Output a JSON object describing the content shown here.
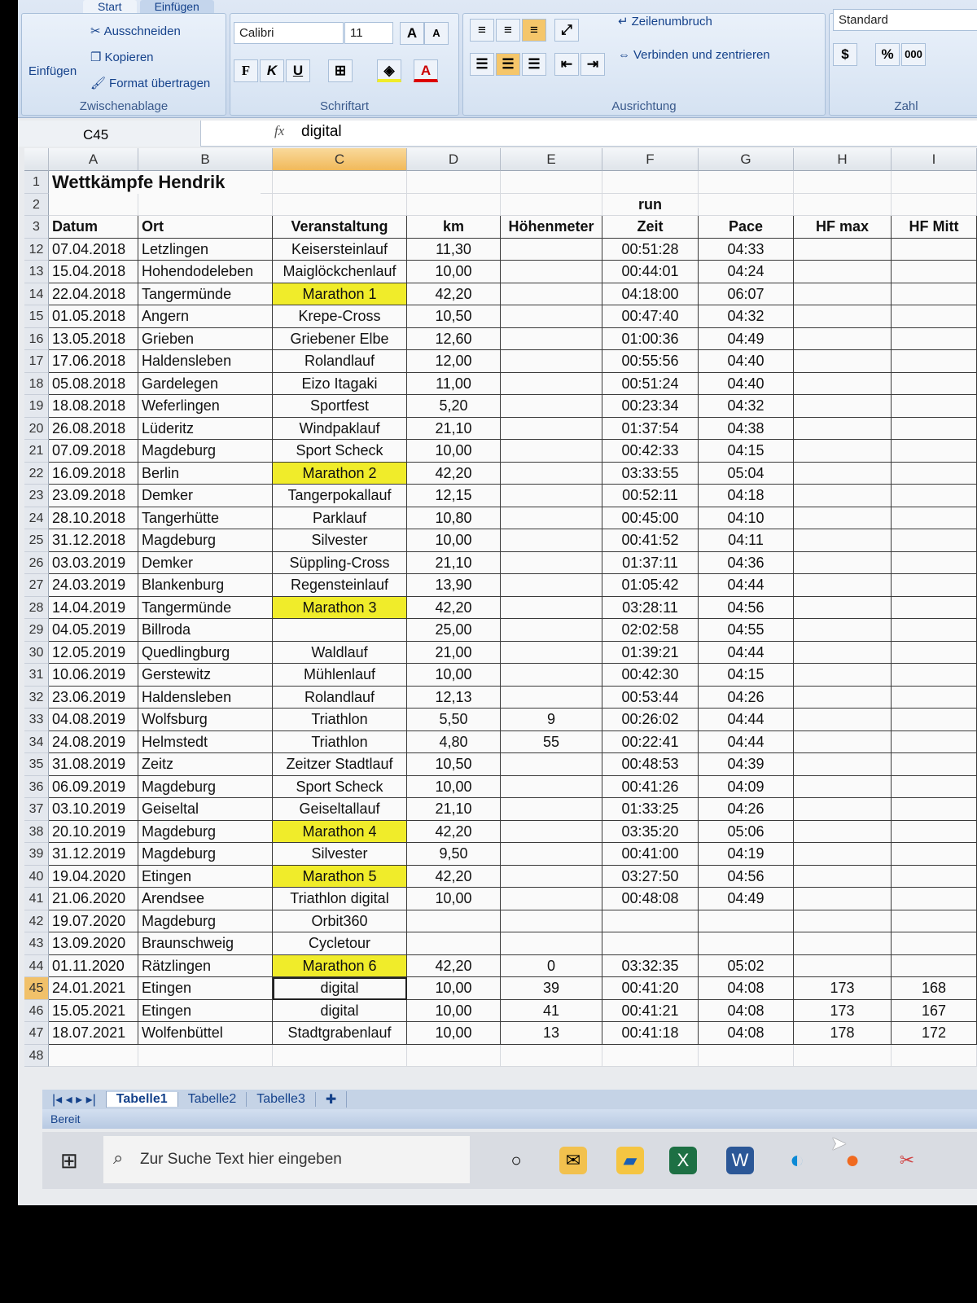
{
  "ribbon": {
    "tabs": [
      "Start",
      "Einfügen"
    ],
    "clipboard": {
      "paste": "Einfügen",
      "cut": "Ausschneiden",
      "copy": "Kopieren",
      "format_painter": "Format übertragen",
      "label": "Zwischenablage"
    },
    "font": {
      "name": "Calibri",
      "size": "11",
      "bold": "F",
      "italic": "K",
      "underline": "U",
      "label": "Schriftart"
    },
    "alignment": {
      "wrap": "Zeilenumbruch",
      "merge": "Verbinden und zentrieren",
      "label": "Ausrichtung"
    },
    "number": {
      "format": "Standard",
      "percent": "%",
      "thousands": "000",
      "label": "Zahl"
    }
  },
  "formula_bar": {
    "name_box": "C45",
    "fx": "fx",
    "value": "digital"
  },
  "columns": [
    "A",
    "B",
    "C",
    "D",
    "E",
    "F",
    "G",
    "H",
    "I"
  ],
  "selected_column": "C",
  "sheet": {
    "title": "Wettkämpfe Hendrik",
    "group_header": "run",
    "headers": [
      "Datum",
      "Ort",
      "Veranstaltung",
      "km",
      "Höhenmeter",
      "Zeit",
      "Pace",
      "HF max",
      "HF Mitt"
    ],
    "rows": [
      [
        "12",
        "07.04.2018",
        "Letzlingen",
        "Keisersteinlauf",
        "11,30",
        "",
        "00:51:28",
        "04:33",
        "",
        ""
      ],
      [
        "13",
        "15.04.2018",
        "Hohendodeleben",
        "Maiglöckchenlauf",
        "10,00",
        "",
        "00:44:01",
        "04:24",
        "",
        ""
      ],
      [
        "14",
        "22.04.2018",
        "Tangermünde",
        "Marathon 1",
        "42,20",
        "",
        "04:18:00",
        "06:07",
        "",
        ""
      ],
      [
        "15",
        "01.05.2018",
        "Angern",
        "Krepe-Cross",
        "10,50",
        "",
        "00:47:40",
        "04:32",
        "",
        ""
      ],
      [
        "16",
        "13.05.2018",
        "Grieben",
        "Griebener Elbe",
        "12,60",
        "",
        "01:00:36",
        "04:49",
        "",
        ""
      ],
      [
        "17",
        "17.06.2018",
        "Haldensleben",
        "Rolandlauf",
        "12,00",
        "",
        "00:55:56",
        "04:40",
        "",
        ""
      ],
      [
        "18",
        "05.08.2018",
        "Gardelegen",
        "Eizo Itagaki",
        "11,00",
        "",
        "00:51:24",
        "04:40",
        "",
        ""
      ],
      [
        "19",
        "18.08.2018",
        "Weferlingen",
        "Sportfest",
        "5,20",
        "",
        "00:23:34",
        "04:32",
        "",
        ""
      ],
      [
        "20",
        "26.08.2018",
        "Lüderitz",
        "Windpaklauf",
        "21,10",
        "",
        "01:37:54",
        "04:38",
        "",
        ""
      ],
      [
        "21",
        "07.09.2018",
        "Magdeburg",
        "Sport Scheck",
        "10,00",
        "",
        "00:42:33",
        "04:15",
        "",
        ""
      ],
      [
        "22",
        "16.09.2018",
        "Berlin",
        "Marathon 2",
        "42,20",
        "",
        "03:33:55",
        "05:04",
        "",
        ""
      ],
      [
        "23",
        "23.09.2018",
        "Demker",
        "Tangerpokallauf",
        "12,15",
        "",
        "00:52:11",
        "04:18",
        "",
        ""
      ],
      [
        "24",
        "28.10.2018",
        "Tangerhütte",
        "Parklauf",
        "10,80",
        "",
        "00:45:00",
        "04:10",
        "",
        ""
      ],
      [
        "25",
        "31.12.2018",
        "Magdeburg",
        "Silvester",
        "10,00",
        "",
        "00:41:52",
        "04:11",
        "",
        ""
      ],
      [
        "26",
        "03.03.2019",
        "Demker",
        "Süppling-Cross",
        "21,10",
        "",
        "01:37:11",
        "04:36",
        "",
        ""
      ],
      [
        "27",
        "24.03.2019",
        "Blankenburg",
        "Regensteinlauf",
        "13,90",
        "",
        "01:05:42",
        "04:44",
        "",
        ""
      ],
      [
        "28",
        "14.04.2019",
        "Tangermünde",
        "Marathon 3",
        "42,20",
        "",
        "03:28:11",
        "04:56",
        "",
        ""
      ],
      [
        "29",
        "04.05.2019",
        "Billroda",
        "",
        "25,00",
        "",
        "02:02:58",
        "04:55",
        "",
        ""
      ],
      [
        "30",
        "12.05.2019",
        "Quedlingburg",
        "Waldlauf",
        "21,00",
        "",
        "01:39:21",
        "04:44",
        "",
        ""
      ],
      [
        "31",
        "10.06.2019",
        "Gerstewitz",
        "Mühlenlauf",
        "10,00",
        "",
        "00:42:30",
        "04:15",
        "",
        ""
      ],
      [
        "32",
        "23.06.2019",
        "Haldensleben",
        "Rolandlauf",
        "12,13",
        "",
        "00:53:44",
        "04:26",
        "",
        ""
      ],
      [
        "33",
        "04.08.2019",
        "Wolfsburg",
        "Triathlon",
        "5,50",
        "9",
        "00:26:02",
        "04:44",
        "",
        ""
      ],
      [
        "34",
        "24.08.2019",
        "Helmstedt",
        "Triathlon",
        "4,80",
        "55",
        "00:22:41",
        "04:44",
        "",
        ""
      ],
      [
        "35",
        "31.08.2019",
        "Zeitz",
        "Zeitzer Stadtlauf",
        "10,50",
        "",
        "00:48:53",
        "04:39",
        "",
        ""
      ],
      [
        "36",
        "06.09.2019",
        "Magdeburg",
        "Sport Scheck",
        "10,00",
        "",
        "00:41:26",
        "04:09",
        "",
        ""
      ],
      [
        "37",
        "03.10.2019",
        "Geiseltal",
        "Geiseltallauf",
        "21,10",
        "",
        "01:33:25",
        "04:26",
        "",
        ""
      ],
      [
        "38",
        "20.10.2019",
        "Magdeburg",
        "Marathon 4",
        "42,20",
        "",
        "03:35:20",
        "05:06",
        "",
        ""
      ],
      [
        "39",
        "31.12.2019",
        "Magdeburg",
        "Silvester",
        "9,50",
        "",
        "00:41:00",
        "04:19",
        "",
        ""
      ],
      [
        "40",
        "19.04.2020",
        "Etingen",
        "Marathon 5",
        "42,20",
        "",
        "03:27:50",
        "04:56",
        "",
        ""
      ],
      [
        "41",
        "21.06.2020",
        "Arendsee",
        "Triathlon digital",
        "10,00",
        "",
        "00:48:08",
        "04:49",
        "",
        ""
      ],
      [
        "42",
        "19.07.2020",
        "Magdeburg",
        "Orbit360",
        "",
        "",
        "",
        "",
        "",
        ""
      ],
      [
        "43",
        "13.09.2020",
        "Braunschweig",
        "Cycletour",
        "",
        "",
        "",
        "",
        "",
        ""
      ],
      [
        "44",
        "01.11.2020",
        "Rätzlingen",
        "Marathon 6",
        "42,20",
        "0",
        "03:32:35",
        "05:02",
        "",
        ""
      ],
      [
        "45",
        "24.01.2021",
        "Etingen",
        "digital",
        "10,00",
        "39",
        "00:41:20",
        "04:08",
        "173",
        "168"
      ],
      [
        "46",
        "15.05.2021",
        "Etingen",
        "digital",
        "10,00",
        "41",
        "00:41:21",
        "04:08",
        "173",
        "167"
      ],
      [
        "47",
        "18.07.2021",
        "Wolfenbüttel",
        "Stadtgrabenlauf",
        "10,00",
        "13",
        "00:41:18",
        "04:08",
        "178",
        "172"
      ],
      [
        "48",
        "",
        "",
        "",
        "",
        "",
        "",
        "",
        "",
        ""
      ]
    ],
    "highlight_color": "#f0ec2a",
    "highlighted_rows": [
      "14",
      "22",
      "28",
      "38",
      "40",
      "44"
    ],
    "selected_row": "45"
  },
  "sheet_tabs": [
    "Tabelle1",
    "Tabelle2",
    "Tabelle3"
  ],
  "active_sheet": "Tabelle1",
  "status": "Bereit",
  "taskbar": {
    "search_placeholder": "Zur Suche Text hier eingeben",
    "apps": [
      "task-view-icon",
      "outlook-icon",
      "file-explorer-icon",
      "excel-icon",
      "word-icon",
      "edge-icon",
      "firefox-icon",
      "snipping-tool-icon"
    ]
  }
}
